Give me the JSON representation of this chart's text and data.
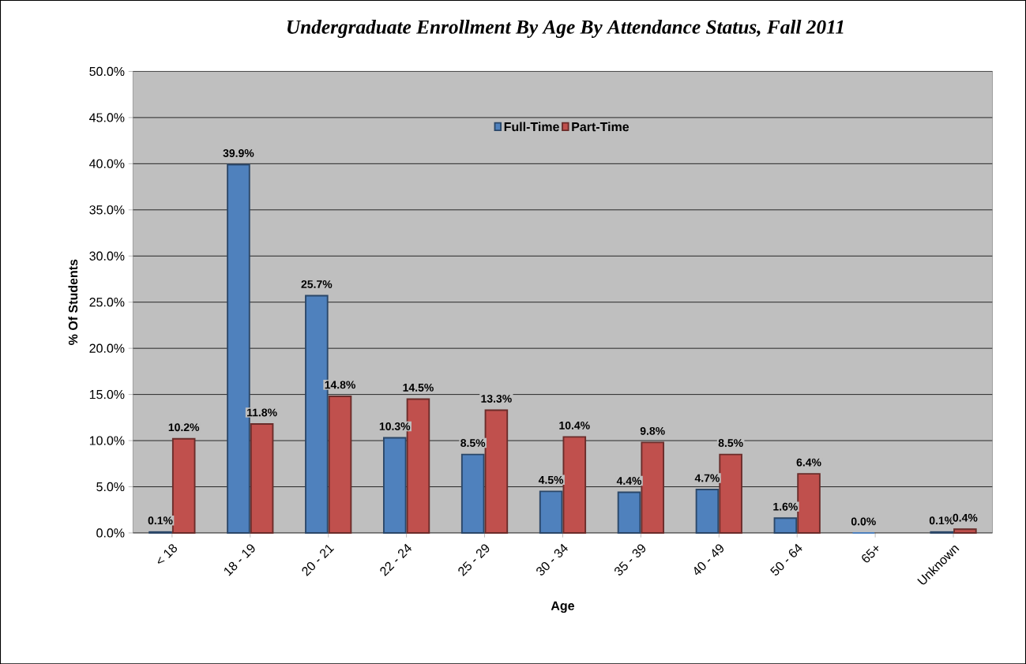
{
  "chart_data": {
    "type": "bar",
    "title": "Undergraduate Enrollment By Age By Attendance Status, Fall 2011",
    "xlabel": "Age",
    "ylabel": "% Of Students",
    "categories": [
      "< 18",
      "18 - 19",
      "20 - 21",
      "22 - 24",
      "25 - 29",
      "30 - 34",
      "35 - 39",
      "40 - 49",
      "50 - 64",
      "65+",
      "Unknown"
    ],
    "series": [
      {
        "name": "Full-Time",
        "color": "#4f81bd",
        "values": [
          0.1,
          39.9,
          25.7,
          10.3,
          8.5,
          4.5,
          4.4,
          4.7,
          1.6,
          0.0,
          0.1
        ],
        "value_labels": [
          "0.1%",
          "39.9%",
          "25.7%",
          "10.3%",
          "8.5%",
          "4.5%",
          "4.4%",
          "4.7%",
          "1.6%",
          "0.0%",
          "0.1%"
        ]
      },
      {
        "name": "Part-Time",
        "color": "#c0504d",
        "values": [
          10.2,
          11.8,
          14.8,
          14.5,
          13.3,
          10.4,
          9.8,
          8.5,
          6.4,
          null,
          0.4
        ],
        "value_labels": [
          "10.2%",
          "11.8%",
          "14.8%",
          "14.5%",
          "13.3%",
          "10.4%",
          "9.8%",
          "8.5%",
          "6.4%",
          null,
          "0.4%"
        ]
      }
    ],
    "ylim": [
      0,
      50
    ],
    "yticks": [
      {
        "value": 0,
        "label": "0.0%"
      },
      {
        "value": 5,
        "label": "5.0%"
      },
      {
        "value": 10,
        "label": "10.0%"
      },
      {
        "value": 15,
        "label": "15.0%"
      },
      {
        "value": 20,
        "label": "20.0%"
      },
      {
        "value": 25,
        "label": "25.0%"
      },
      {
        "value": 30,
        "label": "30.0%"
      },
      {
        "value": 35,
        "label": "35.0%"
      },
      {
        "value": 40,
        "label": "40.0%"
      },
      {
        "value": 45,
        "label": "45.0%"
      },
      {
        "value": 50,
        "label": "50.0%"
      }
    ],
    "grid": "y",
    "legend": "top"
  }
}
